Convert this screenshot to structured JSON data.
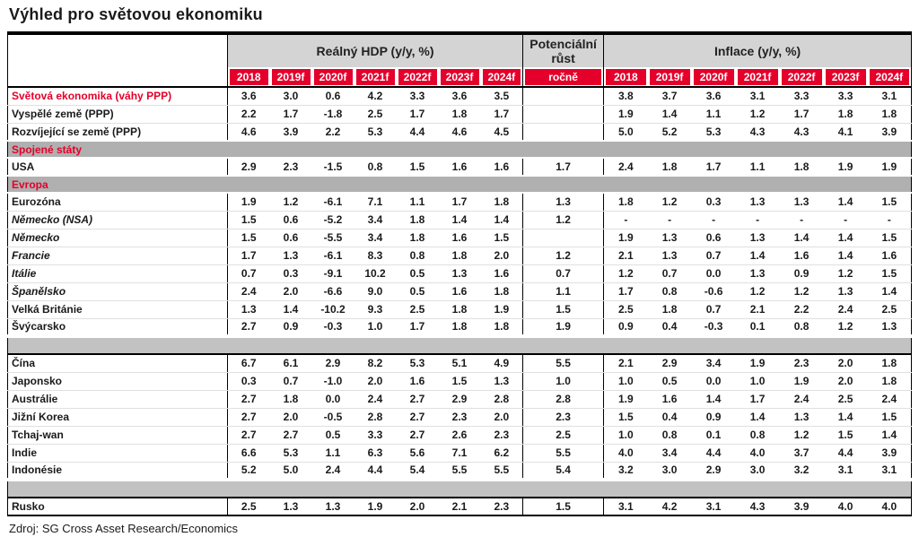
{
  "page_title": "Výhled pro světovou ekonomiku",
  "source": "Zdroj: SG Cross Asset Research/Economics",
  "colors": {
    "accent_red": "#e4002b",
    "group_header_gray": "#d4d4d4",
    "section_band_gray": "#b0b0b0",
    "separator_gray": "#c2c2c2"
  },
  "chart_data": {
    "type": "table",
    "title": "Výhled pro světovou ekonomiku",
    "group_headers": [
      {
        "label": "Reálný HDP (y/y, %)",
        "span": 7
      },
      {
        "label": "Potenciální růst",
        "span": 1
      },
      {
        "label": "Inflace (y/y, %)",
        "span": 7
      }
    ],
    "gdp_year_headers": [
      "2018",
      "2019f",
      "2020f",
      "2021f",
      "2022f",
      "2023f",
      "2024f"
    ],
    "potential_header": "ročně",
    "inflation_year_headers": [
      "2018",
      "2019f",
      "2020f",
      "2021f",
      "2022f",
      "2023f",
      "2024f"
    ],
    "rows": [
      {
        "type": "data",
        "label": "Světová ekonomika (váhy PPP)",
        "label_style": "red",
        "gdp": [
          "3.6",
          "3.0",
          "0.6",
          "4.2",
          "3.3",
          "3.6",
          "3.5"
        ],
        "potential": "",
        "inflation": [
          "3.8",
          "3.7",
          "3.6",
          "3.1",
          "3.3",
          "3.3",
          "3.1"
        ]
      },
      {
        "type": "data",
        "label": "Vyspělé země (PPP)",
        "label_style": "normal",
        "gdp": [
          "2.2",
          "1.7",
          "-1.8",
          "2.5",
          "1.7",
          "1.8",
          "1.7"
        ],
        "potential": "",
        "inflation": [
          "1.9",
          "1.4",
          "1.1",
          "1.2",
          "1.7",
          "1.8",
          "1.8"
        ]
      },
      {
        "type": "data",
        "label": "Rozvíjející se země (PPP)",
        "label_style": "normal",
        "gdp": [
          "4.6",
          "3.9",
          "2.2",
          "5.3",
          "4.4",
          "4.6",
          "4.5"
        ],
        "potential": "",
        "inflation": [
          "5.0",
          "5.2",
          "5.3",
          "4.3",
          "4.3",
          "4.1",
          "3.9"
        ]
      },
      {
        "type": "section",
        "label": "Spojené státy"
      },
      {
        "type": "data",
        "label": "USA",
        "label_style": "normal",
        "gdp": [
          "2.9",
          "2.3",
          "-1.5",
          "0.8",
          "1.5",
          "1.6",
          "1.6"
        ],
        "potential": "1.7",
        "inflation": [
          "2.4",
          "1.8",
          "1.7",
          "1.1",
          "1.8",
          "1.9",
          "1.9"
        ]
      },
      {
        "type": "section",
        "label": "Evropa"
      },
      {
        "type": "data",
        "label": "Eurozóna",
        "label_style": "normal",
        "gdp": [
          "1.9",
          "1.2",
          "-6.1",
          "7.1",
          "1.1",
          "1.7",
          "1.8"
        ],
        "potential": "1.3",
        "inflation": [
          "1.8",
          "1.2",
          "0.3",
          "1.3",
          "1.3",
          "1.4",
          "1.5"
        ]
      },
      {
        "type": "data",
        "label": "Německo (NSA)",
        "label_style": "italic",
        "gdp": [
          "1.5",
          "0.6",
          "-5.2",
          "3.4",
          "1.8",
          "1.4",
          "1.4"
        ],
        "potential": "1.2",
        "inflation": [
          "-",
          "-",
          "-",
          "-",
          "-",
          "-",
          "-"
        ]
      },
      {
        "type": "data",
        "label": "Německo",
        "label_style": "italic",
        "gdp": [
          "1.5",
          "0.6",
          "-5.5",
          "3.4",
          "1.8",
          "1.6",
          "1.5"
        ],
        "potential": "",
        "inflation": [
          "1.9",
          "1.3",
          "0.6",
          "1.3",
          "1.4",
          "1.4",
          "1.5"
        ]
      },
      {
        "type": "data",
        "label": "Francie",
        "label_style": "italic",
        "gdp": [
          "1.7",
          "1.3",
          "-6.1",
          "8.3",
          "0.8",
          "1.8",
          "2.0"
        ],
        "potential": "1.2",
        "inflation": [
          "2.1",
          "1.3",
          "0.7",
          "1.4",
          "1.6",
          "1.4",
          "1.6"
        ]
      },
      {
        "type": "data",
        "label": "Itálie",
        "label_style": "italic",
        "gdp": [
          "0.7",
          "0.3",
          "-9.1",
          "10.2",
          "0.5",
          "1.3",
          "1.6"
        ],
        "potential": "0.7",
        "inflation": [
          "1.2",
          "0.7",
          "0.0",
          "1.3",
          "0.9",
          "1.2",
          "1.5"
        ]
      },
      {
        "type": "data",
        "label": "Španělsko",
        "label_style": "italic",
        "gdp": [
          "2.4",
          "2.0",
          "-6.6",
          "9.0",
          "0.5",
          "1.6",
          "1.8"
        ],
        "potential": "1.1",
        "inflation": [
          "1.7",
          "0.8",
          "-0.6",
          "1.2",
          "1.2",
          "1.3",
          "1.4"
        ]
      },
      {
        "type": "data",
        "label": "Velká Británie",
        "label_style": "normal",
        "gdp": [
          "1.3",
          "1.4",
          "-10.2",
          "9.3",
          "2.5",
          "1.8",
          "1.9"
        ],
        "potential": "1.5",
        "inflation": [
          "2.5",
          "1.8",
          "0.7",
          "2.1",
          "2.2",
          "2.4",
          "2.5"
        ]
      },
      {
        "type": "data",
        "label": "Švýcarsko",
        "label_style": "normal",
        "gdp": [
          "2.7",
          "0.9",
          "-0.3",
          "1.0",
          "1.7",
          "1.8",
          "1.8"
        ],
        "potential": "1.9",
        "inflation": [
          "0.9",
          "0.4",
          "-0.3",
          "0.1",
          "0.8",
          "1.2",
          "1.3"
        ]
      },
      {
        "type": "separator"
      },
      {
        "type": "data",
        "label": "Čína",
        "label_style": "normal",
        "gdp": [
          "6.7",
          "6.1",
          "2.9",
          "8.2",
          "5.3",
          "5.1",
          "4.9"
        ],
        "potential": "5.5",
        "inflation": [
          "2.1",
          "2.9",
          "3.4",
          "1.9",
          "2.3",
          "2.0",
          "1.8"
        ]
      },
      {
        "type": "data",
        "label": "Japonsko",
        "label_style": "normal",
        "gdp": [
          "0.3",
          "0.7",
          "-1.0",
          "2.0",
          "1.6",
          "1.5",
          "1.3"
        ],
        "potential": "1.0",
        "inflation": [
          "1.0",
          "0.5",
          "0.0",
          "1.0",
          "1.9",
          "2.0",
          "1.8"
        ]
      },
      {
        "type": "data",
        "label": "Austrálie",
        "label_style": "normal",
        "gdp": [
          "2.7",
          "1.8",
          "0.0",
          "2.4",
          "2.7",
          "2.9",
          "2.8"
        ],
        "potential": "2.8",
        "inflation": [
          "1.9",
          "1.6",
          "1.4",
          "1.7",
          "2.4",
          "2.5",
          "2.4"
        ]
      },
      {
        "type": "data",
        "label": "Jižní Korea",
        "label_style": "normal",
        "gdp": [
          "2.7",
          "2.0",
          "-0.5",
          "2.8",
          "2.7",
          "2.3",
          "2.0"
        ],
        "potential": "2.3",
        "inflation": [
          "1.5",
          "0.4",
          "0.9",
          "1.4",
          "1.3",
          "1.4",
          "1.5"
        ]
      },
      {
        "type": "data",
        "label": "Tchaj-wan",
        "label_style": "normal",
        "gdp": [
          "2.7",
          "2.7",
          "0.5",
          "3.3",
          "2.7",
          "2.6",
          "2.3"
        ],
        "potential": "2.5",
        "inflation": [
          "1.0",
          "0.8",
          "0.1",
          "0.8",
          "1.2",
          "1.5",
          "1.4"
        ]
      },
      {
        "type": "data",
        "label": "Indie",
        "label_style": "normal",
        "gdp": [
          "6.6",
          "5.3",
          "1.1",
          "6.3",
          "5.6",
          "7.1",
          "6.2"
        ],
        "potential": "5.5",
        "inflation": [
          "4.0",
          "3.4",
          "4.4",
          "4.0",
          "3.7",
          "4.4",
          "3.9"
        ]
      },
      {
        "type": "data",
        "label": "Indonésie",
        "label_style": "normal",
        "gdp": [
          "5.2",
          "5.0",
          "2.4",
          "4.4",
          "5.4",
          "5.5",
          "5.5"
        ],
        "potential": "5.4",
        "inflation": [
          "3.2",
          "3.0",
          "2.9",
          "3.0",
          "3.2",
          "3.1",
          "3.1"
        ]
      },
      {
        "type": "separator"
      },
      {
        "type": "data",
        "label": "Rusko",
        "label_style": "normal",
        "gdp": [
          "2.5",
          "1.3",
          "1.3",
          "1.9",
          "2.0",
          "2.1",
          "2.3"
        ],
        "potential": "1.5",
        "inflation": [
          "3.1",
          "4.2",
          "3.1",
          "4.3",
          "3.9",
          "4.0",
          "4.0"
        ]
      }
    ]
  }
}
